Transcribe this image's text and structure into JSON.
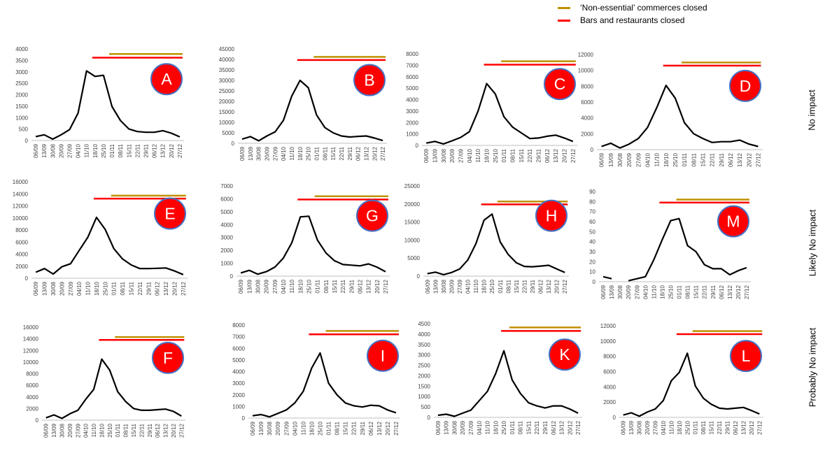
{
  "legend": [
    {
      "label": "‘Non-essential’ commerces closed",
      "color": "#bf9000"
    },
    {
      "label": "Bars and restaurants closed",
      "color": "#ff0000"
    }
  ],
  "row_labels": [
    "No impact",
    "Likely No impact",
    "Probably No impact"
  ],
  "colors": {
    "line": "#000000",
    "badge_fill": "#ff0000",
    "badge_stroke": "#4472c4",
    "badge_text": "#ffffff"
  },
  "chart_data": [
    {
      "type": "line",
      "panel": "A",
      "x": [
        "06/09",
        "13/09",
        "30/08",
        "20/09",
        "27/09",
        "04/10",
        "11/10",
        "18/10",
        "25/10",
        "01/11",
        "08/11",
        "15/11",
        "22/11",
        "29/11",
        "06/12",
        "13/12",
        "20/12",
        "27/12"
      ],
      "series": [
        {
          "values": [
            170,
            250,
            60,
            250,
            480,
            1200,
            3040,
            2800,
            2850,
            1480,
            870,
            500,
            390,
            360,
            360,
            430,
            320,
            160
          ]
        }
      ],
      "ylim": [
        0,
        4000
      ],
      "yticks": [
        0,
        500,
        1000,
        1500,
        2000,
        2500,
        3000,
        3500,
        4000
      ],
      "hlines": [
        {
          "kind": "commerces",
          "y": 3780,
          "x_from": "01/11",
          "x_to": "27/12"
        },
        {
          "kind": "bars",
          "y": 3620,
          "x_from": "18/10",
          "x_to": "27/12"
        }
      ]
    },
    {
      "type": "line",
      "panel": "B",
      "x": [
        "06/09",
        "13/09",
        "30/08",
        "20/09",
        "27/09",
        "04/10",
        "11/10",
        "18/10",
        "25/10",
        "01/11",
        "08/11",
        "15/11",
        "22/11",
        "29/11",
        "06/12",
        "13/12",
        "20/12",
        "27/12"
      ],
      "series": [
        {
          "values": [
            2000,
            3200,
            1200,
            3500,
            5500,
            11000,
            22500,
            30000,
            26500,
            13500,
            7500,
            5000,
            3500,
            3000,
            3300,
            3500,
            2500,
            1300
          ]
        }
      ],
      "ylim": [
        0,
        45000
      ],
      "yticks": [
        0,
        5000,
        10000,
        15000,
        20000,
        25000,
        30000,
        35000,
        40000,
        45000
      ],
      "hlines": [
        {
          "kind": "commerces",
          "y": 41200,
          "x_from": "01/11",
          "x_to": "27/12"
        },
        {
          "kind": "bars",
          "y": 39700,
          "x_from": "18/10",
          "x_to": "27/12"
        }
      ]
    },
    {
      "type": "line",
      "panel": "C",
      "x": [
        "06/09",
        "13/09",
        "30/08",
        "20/09",
        "27/09",
        "04/10",
        "11/10",
        "18/10",
        "25/10",
        "01/11",
        "08/11",
        "15/11",
        "22/11",
        "29/11",
        "06/12",
        "13/12",
        "20/12",
        "27/12"
      ],
      "series": [
        {
          "values": [
            200,
            350,
            130,
            400,
            700,
            1200,
            3000,
            5400,
            4500,
            2500,
            1600,
            1100,
            600,
            650,
            800,
            900,
            650,
            350
          ]
        }
      ],
      "ylim": [
        0,
        8000
      ],
      "yticks": [
        0,
        1000,
        2000,
        3000,
        4000,
        5000,
        6000,
        7000,
        8000
      ],
      "hlines": [
        {
          "kind": "commerces",
          "y": 7350,
          "x_from": "01/11",
          "x_to": "27/12"
        },
        {
          "kind": "bars",
          "y": 7050,
          "x_from": "18/10",
          "x_to": "27/12"
        }
      ]
    },
    {
      "type": "line",
      "panel": "D",
      "x": [
        "06/09",
        "13/09",
        "30/08",
        "20/09",
        "27/09",
        "04/10",
        "11/10",
        "18/10",
        "25/10",
        "01/11",
        "08/11",
        "15/11",
        "22/11",
        "29/11",
        "06/12",
        "13/12",
        "20/12",
        "27/12"
      ],
      "series": [
        {
          "values": [
            400,
            800,
            200,
            700,
            1400,
            2800,
            5300,
            8100,
            6500,
            3400,
            2000,
            1400,
            900,
            1000,
            1000,
            1200,
            700,
            400
          ]
        }
      ],
      "ylim": [
        0,
        12000
      ],
      "yticks": [
        0,
        2000,
        4000,
        6000,
        8000,
        10000,
        12000
      ],
      "hlines": [
        {
          "kind": "commerces",
          "y": 11000,
          "x_from": "01/11",
          "x_to": "27/12"
        },
        {
          "kind": "bars",
          "y": 10600,
          "x_from": "18/10",
          "x_to": "27/12"
        }
      ]
    },
    {
      "type": "line",
      "panel": "E",
      "x": [
        "06/09",
        "13/09",
        "30/08",
        "20/09",
        "27/09",
        "04/10",
        "11/10",
        "18/10",
        "25/10",
        "01/11",
        "08/11",
        "15/11",
        "22/11",
        "29/11",
        "06/12",
        "13/12",
        "20/12",
        "27/12"
      ],
      "series": [
        {
          "values": [
            1000,
            1600,
            700,
            1900,
            2400,
            4600,
            6800,
            10100,
            8100,
            4900,
            3200,
            2200,
            1600,
            1600,
            1650,
            1700,
            1200,
            600
          ]
        }
      ],
      "ylim": [
        0,
        16000
      ],
      "yticks": [
        0,
        2000,
        4000,
        6000,
        8000,
        10000,
        12000,
        14000,
        16000
      ],
      "hlines": [
        {
          "kind": "commerces",
          "y": 13700,
          "x_from": "01/11",
          "x_to": "27/12"
        },
        {
          "kind": "bars",
          "y": 13200,
          "x_from": "18/10",
          "x_to": "27/12"
        }
      ]
    },
    {
      "type": "line",
      "panel": "G",
      "x": [
        "06/09",
        "13/09",
        "30/08",
        "20/09",
        "27/09",
        "04/10",
        "11/10",
        "18/10",
        "25/10",
        "01/11",
        "08/11",
        "15/11",
        "22/11",
        "29/11",
        "06/12",
        "13/12",
        "20/12",
        "27/12"
      ],
      "series": [
        {
          "values": [
            250,
            450,
            150,
            350,
            700,
            1400,
            2600,
            4600,
            4650,
            2800,
            1800,
            1200,
            900,
            850,
            800,
            950,
            700,
            350
          ]
        }
      ],
      "ylim": [
        0,
        7000
      ],
      "yticks": [
        0,
        1000,
        2000,
        3000,
        4000,
        5000,
        6000,
        7000
      ],
      "hlines": [
        {
          "kind": "commerces",
          "y": 6200,
          "x_from": "01/11",
          "x_to": "27/12"
        },
        {
          "kind": "bars",
          "y": 5950,
          "x_from": "18/10",
          "x_to": "27/12"
        }
      ]
    },
    {
      "type": "line",
      "panel": "H",
      "x": [
        "06/09",
        "13/09",
        "30/08",
        "20/09",
        "27/09",
        "04/10",
        "11/10",
        "18/10",
        "25/10",
        "01/11",
        "08/11",
        "15/11",
        "22/11",
        "29/11",
        "06/12",
        "13/12",
        "20/12",
        "27/12"
      ],
      "series": [
        {
          "values": [
            700,
            1100,
            400,
            1000,
            2000,
            4500,
            9000,
            15500,
            17200,
            9500,
            6000,
            3700,
            2700,
            2600,
            2800,
            3000,
            2000,
            1000
          ]
        }
      ],
      "ylim": [
        0,
        25000
      ],
      "yticks": [
        0,
        5000,
        10000,
        15000,
        20000,
        25000
      ],
      "hlines": [
        {
          "kind": "commerces",
          "y": 20700,
          "x_from": "01/11",
          "x_to": "27/12"
        },
        {
          "kind": "bars",
          "y": 19900,
          "x_from": "18/10",
          "x_to": "27/12"
        }
      ]
    },
    {
      "type": "line",
      "panel": "M",
      "x": [
        "06/09",
        "13/09",
        "30/08",
        "20/09",
        "27/09",
        "04/10",
        "11/10",
        "18/10",
        "25/10",
        "01/11",
        "08/11",
        "15/11",
        "22/11",
        "29/11",
        "06/12",
        "13/12",
        "20/12",
        "27/12"
      ],
      "series": [
        {
          "values": [
            5,
            3,
            null,
            1,
            3,
            5,
            22,
            42,
            61,
            63,
            36,
            30,
            17,
            13,
            13,
            7,
            11,
            14
          ]
        }
      ],
      "ylim": [
        0,
        90
      ],
      "yticks": [
        0,
        10,
        20,
        30,
        40,
        50,
        60,
        70,
        80,
        90
      ],
      "hlines": [
        {
          "kind": "commerces",
          "y": 82,
          "x_from": "01/11",
          "x_to": "27/12"
        },
        {
          "kind": "bars",
          "y": 79,
          "x_from": "18/10",
          "x_to": "27/12"
        }
      ]
    },
    {
      "type": "line",
      "panel": "F",
      "x": [
        "06/09",
        "13/09",
        "30/08",
        "20/09",
        "27/09",
        "04/10",
        "11/10",
        "18/10",
        "25/10",
        "01/11",
        "08/11",
        "15/11",
        "22/11",
        "29/11",
        "06/12",
        "13/12",
        "20/12",
        "27/12"
      ],
      "series": [
        {
          "values": [
            400,
            900,
            300,
            1100,
            1700,
            3600,
            5300,
            10500,
            8600,
            4900,
            3200,
            2000,
            1700,
            1700,
            1800,
            1900,
            1500,
            700
          ]
        }
      ],
      "ylim": [
        0,
        16000
      ],
      "yticks": [
        0,
        2000,
        4000,
        6000,
        8000,
        10000,
        12000,
        14000,
        16000
      ],
      "hlines": [
        {
          "kind": "commerces",
          "y": 14300,
          "x_from": "01/11",
          "x_to": "27/12"
        },
        {
          "kind": "bars",
          "y": 13800,
          "x_from": "18/10",
          "x_to": "27/12"
        }
      ]
    },
    {
      "type": "line",
      "panel": "I",
      "x": [
        "06/09",
        "13/09",
        "30/08",
        "20/09",
        "27/09",
        "04/10",
        "11/10",
        "18/10",
        "25/10",
        "01/11",
        "08/11",
        "15/11",
        "22/11",
        "29/11",
        "06/12",
        "13/12",
        "20/12",
        "27/12"
      ],
      "series": [
        {
          "values": [
            200,
            300,
            100,
            400,
            700,
            1300,
            2300,
            4300,
            5600,
            3000,
            2000,
            1300,
            1050,
            950,
            1100,
            1050,
            700,
            450
          ]
        }
      ],
      "ylim": [
        0,
        8000
      ],
      "yticks": [
        0,
        1000,
        2000,
        3000,
        4000,
        5000,
        6000,
        7000,
        8000
      ],
      "hlines": [
        {
          "kind": "commerces",
          "y": 7500,
          "x_from": "01/11",
          "x_to": "27/12"
        },
        {
          "kind": "bars",
          "y": 7200,
          "x_from": "18/10",
          "x_to": "27/12"
        }
      ]
    },
    {
      "type": "line",
      "panel": "K",
      "x": [
        "06/09",
        "13/09",
        "30/08",
        "20/09",
        "27/09",
        "04/10",
        "11/10",
        "18/10",
        "25/10",
        "01/11",
        "08/11",
        "15/11",
        "22/11",
        "29/11",
        "06/12",
        "13/12",
        "20/12",
        "27/12"
      ],
      "series": [
        {
          "values": [
            100,
            150,
            50,
            200,
            350,
            800,
            1250,
            2100,
            3200,
            1800,
            1150,
            700,
            550,
            450,
            550,
            550,
            400,
            200
          ]
        }
      ],
      "ylim": [
        0,
        4500
      ],
      "yticks": [
        0,
        500,
        1000,
        1500,
        2000,
        2500,
        3000,
        3500,
        4000,
        4500
      ],
      "hlines": [
        {
          "kind": "commerces",
          "y": 4320,
          "x_from": "01/11",
          "x_to": "27/12"
        },
        {
          "kind": "bars",
          "y": 4150,
          "x_from": "25/10",
          "x_to": "27/12"
        }
      ]
    },
    {
      "type": "line",
      "panel": "L",
      "x": [
        "06/09",
        "13/09",
        "30/08",
        "20/09",
        "27/09",
        "04/10",
        "11/10",
        "18/10",
        "25/10",
        "01/11",
        "08/11",
        "15/11",
        "22/11",
        "29/11",
        "06/12",
        "13/12",
        "20/12",
        "27/12"
      ],
      "series": [
        {
          "values": [
            300,
            600,
            150,
            700,
            1100,
            2200,
            4800,
            5900,
            8400,
            4100,
            2500,
            1700,
            1200,
            1100,
            1200,
            1300,
            900,
            450
          ]
        }
      ],
      "ylim": [
        0,
        12000
      ],
      "yticks": [
        0,
        2000,
        4000,
        6000,
        8000,
        10000,
        12000
      ],
      "hlines": [
        {
          "kind": "commerces",
          "y": 11300,
          "x_from": "01/11",
          "x_to": "27/12"
        },
        {
          "kind": "bars",
          "y": 10900,
          "x_from": "18/10",
          "x_to": "27/12"
        }
      ]
    }
  ]
}
